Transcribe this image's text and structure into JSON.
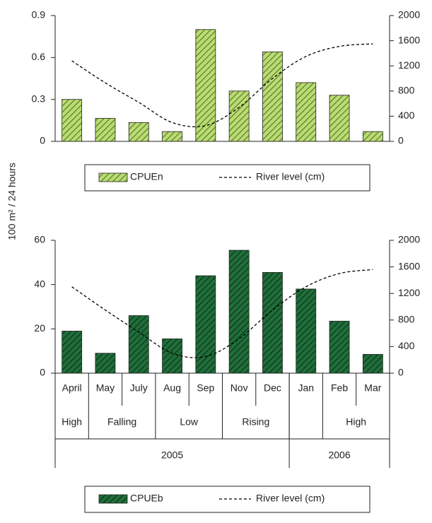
{
  "chart_data": [
    {
      "type": "bar",
      "ylabel": "100 m² / 24 hours",
      "ylim": [
        0,
        0.9
      ],
      "yticks": [
        0,
        0.3,
        0.6,
        0.9
      ],
      "y2lim": [
        0,
        2000
      ],
      "y2ticks": [
        0,
        400,
        800,
        1200,
        1600,
        2000
      ],
      "series": [
        {
          "name": "CPUEn",
          "color": "#b9db72",
          "hatch": "#4a6b1e",
          "values": [
            0.3,
            0.165,
            0.135,
            0.07,
            0.8,
            0.36,
            0.64,
            0.42,
            0.33,
            0.07
          ]
        },
        {
          "name": "River level (cm)",
          "type": "line",
          "axis": "y2",
          "color": "#000000",
          "values": [
            1280,
            930,
            620,
            300,
            250,
            540,
            1000,
            1350,
            1510,
            1550
          ]
        }
      ]
    },
    {
      "type": "bar",
      "categories": [
        "April",
        "May",
        "July",
        "Aug",
        "Sep",
        "Nov",
        "Dec",
        "Jan",
        "Feb",
        "Mar"
      ],
      "seasons": [
        {
          "label": "High",
          "from": 0,
          "to": 0
        },
        {
          "label": "Falling",
          "from": 1,
          "to": 2
        },
        {
          "label": "Low",
          "from": 3,
          "to": 4
        },
        {
          "label": "Rising",
          "from": 5,
          "to": 6
        },
        {
          "label": "High",
          "from": 8,
          "to": 9
        }
      ],
      "years": [
        {
          "label": "2005",
          "from": 0,
          "to": 6
        },
        {
          "label": "2006",
          "from": 7,
          "to": 9
        }
      ],
      "ylim": [
        0,
        60
      ],
      "yticks": [
        0,
        20,
        40,
        60
      ],
      "y2lim": [
        0,
        2000
      ],
      "y2ticks": [
        0,
        400,
        800,
        1200,
        1600,
        2000
      ],
      "series": [
        {
          "name": "CPUEb",
          "color": "#1f6e3a",
          "hatch": "#0b2a15",
          "values": [
            19,
            9,
            26,
            15.5,
            44,
            55.5,
            45.5,
            38,
            23.5,
            8.5
          ]
        },
        {
          "name": "River level (cm)",
          "type": "line",
          "axis": "y2",
          "color": "#000000",
          "values": [
            1300,
            950,
            620,
            300,
            250,
            520,
            950,
            1300,
            1500,
            1560
          ]
        }
      ]
    }
  ]
}
